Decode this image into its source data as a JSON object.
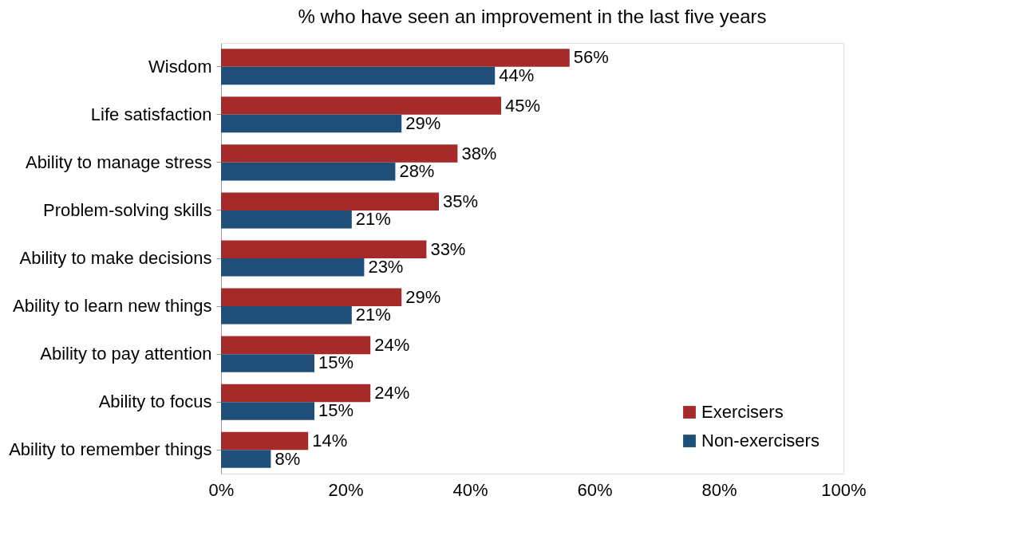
{
  "chart_data": {
    "type": "bar",
    "orientation": "horizontal",
    "title": "% who have seen an improvement in the last five years",
    "categories": [
      "Wisdom",
      "Life satisfaction",
      "Ability to manage stress",
      "Problem-solving skills",
      "Ability to make decisions",
      "Ability to learn new things",
      "Ability to pay attention",
      "Ability to focus",
      "Ability to remember things"
    ],
    "series": [
      {
        "name": "Exercisers",
        "color": "#a52a2a",
        "values": [
          56,
          45,
          38,
          35,
          33,
          29,
          24,
          24,
          14
        ],
        "value_labels": [
          "56%",
          "45%",
          "38%",
          "35%",
          "33%",
          "29%",
          "24%",
          "24%",
          "14%"
        ]
      },
      {
        "name": "Non-exercisers",
        "color": "#1f4e79",
        "values": [
          44,
          29,
          28,
          21,
          23,
          21,
          15,
          15,
          8
        ],
        "value_labels": [
          "44%",
          "29%",
          "28%",
          "21%",
          "23%",
          "21%",
          "15%",
          "15%",
          "8%"
        ]
      }
    ],
    "xlim": [
      0,
      100
    ],
    "xticks": [
      {
        "value": 0,
        "label": "0%"
      },
      {
        "value": 20,
        "label": "20%"
      },
      {
        "value": 40,
        "label": "40%"
      },
      {
        "value": 60,
        "label": "60%"
      },
      {
        "value": 80,
        "label": "80%"
      },
      {
        "value": 100,
        "label": "100%"
      }
    ],
    "grid": false,
    "legend": "bottom right"
  }
}
